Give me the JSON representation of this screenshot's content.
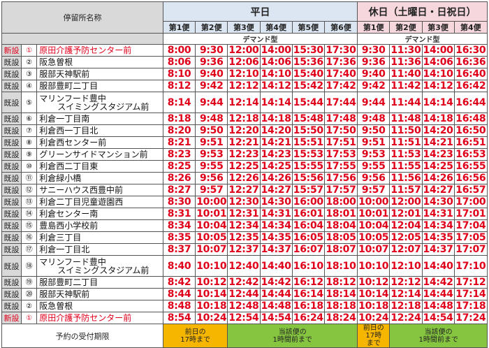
{
  "header": {
    "stop_name_label": "停留所名称",
    "weekday_label": "平日",
    "holiday_label": "休日（土曜日・日祝日）",
    "weekday_runs": [
      "第1便",
      "第2便",
      "第3便",
      "第4便",
      "第5便",
      "第6便"
    ],
    "holiday_runs": [
      "第1便",
      "第2便",
      "第3便",
      "第4便"
    ],
    "demand_label_weekday": "デマンド型",
    "demand_label_holiday": "デマンド型"
  },
  "rows": [
    {
      "status": "新設",
      "num": "①",
      "name": "原田介護予防センター前",
      "name2": "",
      "weekday": [
        "8:00",
        "9:30",
        "12:00",
        "14:00",
        "15:30",
        "17:30"
      ],
      "holiday": [
        "9:30",
        "11:30",
        "14:00",
        "16:30"
      ]
    },
    {
      "status": "既設",
      "num": "②",
      "name": "阪急曽根",
      "name2": "",
      "weekday": [
        "8:06",
        "9:36",
        "12:06",
        "14:06",
        "15:36",
        "17:36"
      ],
      "holiday": [
        "9:36",
        "11:36",
        "14:06",
        "16:36"
      ]
    },
    {
      "status": "既設",
      "num": "③",
      "name": "服部天神駅前",
      "name2": "",
      "weekday": [
        "8:10",
        "9:40",
        "12:10",
        "14:10",
        "15:40",
        "17:40"
      ],
      "holiday": [
        "9:40",
        "11:40",
        "14:10",
        "16:40"
      ]
    },
    {
      "status": "既設",
      "num": "④",
      "name": "服部豊町二丁目",
      "name2": "",
      "weekday": [
        "8:12",
        "9:42",
        "12:12",
        "14:12",
        "15:42",
        "17:42"
      ],
      "holiday": [
        "9:42",
        "11:42",
        "14:12",
        "16:42"
      ]
    },
    {
      "status": "既設",
      "num": "⑤",
      "name": "マリンフード豊中",
      "name2": "スイミングスタジアム前",
      "weekday": [
        "8:14",
        "9:44",
        "12:14",
        "14:14",
        "15:44",
        "17:44"
      ],
      "holiday": [
        "9:44",
        "11:44",
        "14:14",
        "16:44"
      ]
    },
    {
      "status": "既設",
      "num": "⑥",
      "name": "利倉一丁目南",
      "name2": "",
      "weekday": [
        "8:18",
        "9:48",
        "12:18",
        "14:18",
        "15:48",
        "17:48"
      ],
      "holiday": [
        "9:48",
        "11:48",
        "14:18",
        "16:48"
      ]
    },
    {
      "status": "既設",
      "num": "⑦",
      "name": "利倉西一丁目北",
      "name2": "",
      "weekday": [
        "8:20",
        "9:50",
        "12:20",
        "14:20",
        "15:50",
        "17:50"
      ],
      "holiday": [
        "9:50",
        "11:50",
        "14:20",
        "16:50"
      ]
    },
    {
      "status": "既設",
      "num": "⑧",
      "name": "利倉西センター前",
      "name2": "",
      "weekday": [
        "8:21",
        "9:51",
        "12:21",
        "14:21",
        "15:51",
        "17:51"
      ],
      "holiday": [
        "9:51",
        "11:51",
        "14:21",
        "16:51"
      ]
    },
    {
      "status": "既設",
      "num": "⑨",
      "name": "グリーンサイドマンション前",
      "name2": "",
      "weekday": [
        "8:23",
        "9:53",
        "12:23",
        "14:23",
        "15:53",
        "17:53"
      ],
      "holiday": [
        "9:53",
        "11:53",
        "14:23",
        "16:53"
      ]
    },
    {
      "status": "既設",
      "num": "⑩",
      "name": "利倉西二丁目東",
      "name2": "",
      "weekday": [
        "8:25",
        "9:55",
        "12:25",
        "14:25",
        "15:55",
        "17:55"
      ],
      "holiday": [
        "9:55",
        "11:55",
        "14:25",
        "16:55"
      ]
    },
    {
      "status": "既設",
      "num": "⑪",
      "name": "利倉緑小橋",
      "name2": "",
      "weekday": [
        "8:26",
        "9:56",
        "12:26",
        "14:26",
        "15:56",
        "17:56"
      ],
      "holiday": [
        "9:56",
        "11:56",
        "14:26",
        "16:56"
      ]
    },
    {
      "status": "既設",
      "num": "⑫",
      "name": "サニーハウス西豊中前",
      "name2": "",
      "weekday": [
        "8:27",
        "9:57",
        "12:27",
        "14:27",
        "15:57",
        "17:57"
      ],
      "holiday": [
        "9:57",
        "11:57",
        "14:27",
        "16:57"
      ]
    },
    {
      "status": "既設",
      "num": "⑬",
      "name": "利倉二丁目児童遊園西",
      "name2": "",
      "weekday": [
        "8:30",
        "10:00",
        "12:30",
        "14:30",
        "16:00",
        "18:00"
      ],
      "holiday": [
        "10:00",
        "12:00",
        "14:30",
        "17:00"
      ]
    },
    {
      "status": "既設",
      "num": "⑭",
      "name": "利倉センター南",
      "name2": "",
      "weekday": [
        "8:31",
        "10:01",
        "12:31",
        "14:31",
        "16:01",
        "18:01"
      ],
      "holiday": [
        "10:01",
        "12:01",
        "14:31",
        "17:01"
      ]
    },
    {
      "status": "既設",
      "num": "⑮",
      "name": "豊島西小学校前",
      "name2": "",
      "weekday": [
        "8:34",
        "10:04",
        "12:34",
        "14:34",
        "16:04",
        "18:04"
      ],
      "holiday": [
        "10:04",
        "12:04",
        "14:34",
        "17:04"
      ]
    },
    {
      "status": "既設",
      "num": "⑯",
      "name": "利倉三丁目",
      "name2": "",
      "weekday": [
        "8:35",
        "10:05",
        "12:35",
        "14:35",
        "16:05",
        "18:05"
      ],
      "holiday": [
        "10:05",
        "12:05",
        "14:35",
        "17:05"
      ]
    },
    {
      "status": "既設",
      "num": "⑰",
      "name": "利倉一丁目北",
      "name2": "",
      "weekday": [
        "8:37",
        "10:07",
        "12:37",
        "14:37",
        "16:07",
        "18:07"
      ],
      "holiday": [
        "10:07",
        "12:07",
        "14:37",
        "17:07"
      ]
    },
    {
      "status": "既設",
      "num": "⑱",
      "name": "マリンフード豊中",
      "name2": "スイミングスタジアム前",
      "weekday": [
        "8:40",
        "10:10",
        "12:40",
        "14:40",
        "16:10",
        "18:10"
      ],
      "holiday": [
        "10:10",
        "12:10",
        "14:40",
        "17:10"
      ]
    },
    {
      "status": "既設",
      "num": "⑲",
      "name": "服部豊町二丁目",
      "name2": "",
      "weekday": [
        "8:42",
        "10:12",
        "12:42",
        "14:42",
        "16:12",
        "18:12"
      ],
      "holiday": [
        "10:12",
        "12:12",
        "14:42",
        "17:12"
      ]
    },
    {
      "status": "既設",
      "num": "⑳",
      "name": "服部天神駅前",
      "name2": "",
      "weekday": [
        "8:44",
        "10:14",
        "12:44",
        "14:44",
        "16:14",
        "18:14"
      ],
      "holiday": [
        "10:14",
        "12:14",
        "14:44",
        "17:14"
      ]
    },
    {
      "status": "既設",
      "num": "②",
      "name": "阪急曽根",
      "name2": "",
      "weekday": [
        "8:48",
        "10:18",
        "12:48",
        "14:48",
        "16:18",
        "18:18"
      ],
      "holiday": [
        "10:18",
        "12:18",
        "14:48",
        "17:18"
      ]
    },
    {
      "status": "新設",
      "num": "①",
      "name": "原田介護予防センター前",
      "name2": "",
      "weekday": [
        "8:54",
        "10:24",
        "12:54",
        "14:54",
        "16:24",
        "18:24"
      ],
      "holiday": [
        "10:24",
        "12:24",
        "14:54",
        "17:24"
      ]
    }
  ],
  "footer": {
    "label": "予約の受付期限",
    "weekday_first": "前日の\n17時まで",
    "weekday_rest": "当該便の\n1時間前まで",
    "holiday_first": "前日の\n17時\nまで",
    "holiday_rest": "当該便の\n1時間前まで"
  },
  "colors": {
    "time_text": "#e0001a",
    "new_status": "#e0001a",
    "weekday_header": "#dce6f2",
    "holiday_header": "#f6d7de",
    "deadline_orange": "#f6b600",
    "deadline_green": "#86c540"
  }
}
